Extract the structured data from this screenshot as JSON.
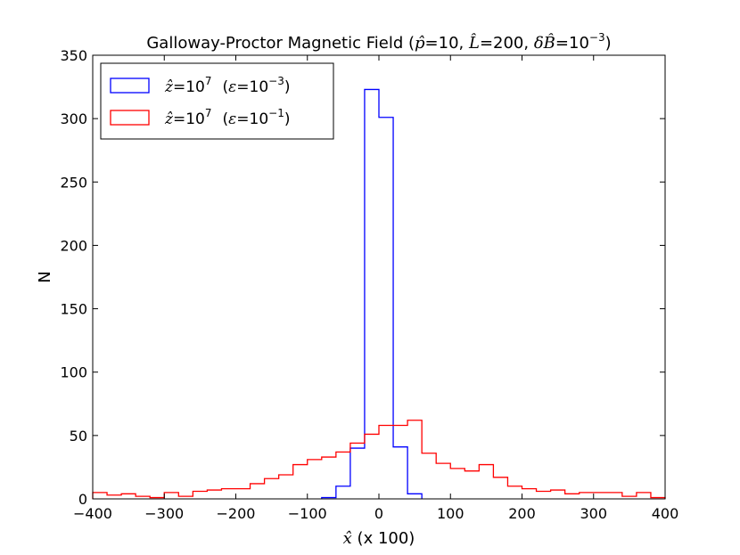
{
  "chart_data": {
    "type": "step-histogram",
    "title": {
      "main": "Galloway-Proctor Magnetic Field (",
      "p_sym": "p̂",
      "p_val": "=10, ",
      "L_sym": "L̂",
      "L_val": "=200, ",
      "dB_sym": "δB̂",
      "dB_val": "=10",
      "dB_exp": "−3",
      "close": ")"
    },
    "xlabel": {
      "sym": "x̂",
      "text": " (x 100)"
    },
    "ylabel": "N",
    "xlim": [
      -400,
      400
    ],
    "ylim": [
      0,
      350
    ],
    "xticks": [
      "−400",
      "−300",
      "−200",
      "−100",
      "0",
      "100",
      "200",
      "300",
      "400"
    ],
    "xtick_values": [
      -400,
      -300,
      -200,
      -100,
      0,
      100,
      200,
      300,
      400
    ],
    "yticks": [
      "0",
      "50",
      "100",
      "150",
      "200",
      "250",
      "300",
      "350"
    ],
    "ytick_values": [
      0,
      50,
      100,
      150,
      200,
      250,
      300,
      350
    ],
    "legend_position": "upper-left",
    "series": [
      {
        "color": "#0000ff",
        "legend": {
          "sym": "ẑ",
          "eq": "=10",
          "exp": "7",
          "eps": "ε",
          "eps_eq": "=10",
          "eps_exp": "−3"
        },
        "bin_edges": [
          -80,
          -60,
          -40,
          -20,
          0,
          20,
          40,
          60
        ],
        "counts": [
          1,
          10,
          40,
          323,
          301,
          41,
          4
        ]
      },
      {
        "color": "#ff0000",
        "legend": {
          "sym": "ẑ",
          "eq": "=10",
          "exp": "7",
          "eps": "ε",
          "eps_eq": "=10",
          "eps_exp": "−1"
        },
        "bin_edges": [
          -400,
          -380,
          -360,
          -340,
          -320,
          -300,
          -280,
          -260,
          -240,
          -220,
          -200,
          -180,
          -160,
          -140,
          -120,
          -100,
          -80,
          -60,
          -40,
          -20,
          0,
          20,
          40,
          60,
          80,
          100,
          120,
          140,
          160,
          180,
          200,
          220,
          240,
          260,
          280,
          300,
          320,
          340,
          360,
          380,
          400
        ],
        "counts": [
          5,
          3,
          4,
          2,
          1,
          5,
          2,
          6,
          7,
          8,
          8,
          12,
          16,
          19,
          27,
          31,
          33,
          37,
          44,
          51,
          58,
          58,
          62,
          36,
          28,
          24,
          22,
          27,
          17,
          10,
          8,
          6,
          7,
          4,
          5,
          5,
          5,
          2,
          5,
          1
        ]
      }
    ]
  }
}
